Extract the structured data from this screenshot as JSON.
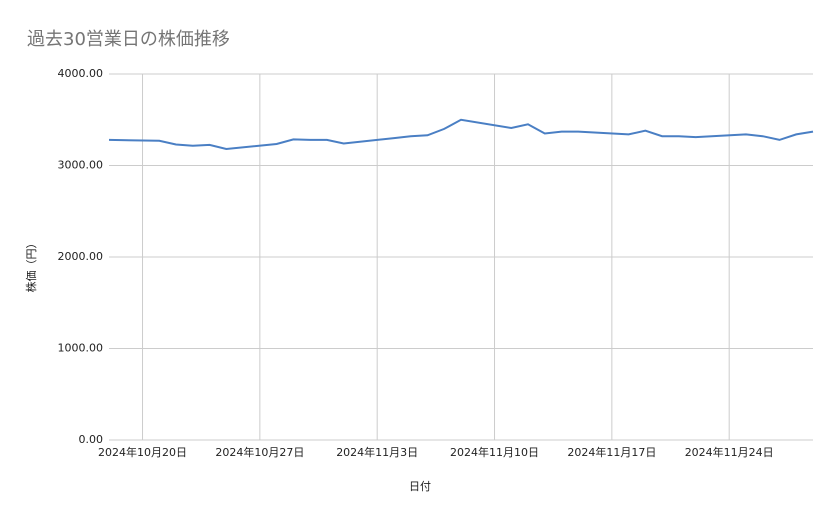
{
  "chart_data": {
    "type": "line",
    "title": "過去30営業日の株価推移",
    "x_label": "日付",
    "y_label": "株価（円）",
    "x": [
      "2024-10-18",
      "2024-10-21",
      "2024-10-22",
      "2024-10-23",
      "2024-10-24",
      "2024-10-25",
      "2024-10-28",
      "2024-10-29",
      "2024-10-30",
      "2024-10-31",
      "2024-11-01",
      "2024-11-04",
      "2024-11-05",
      "2024-11-06",
      "2024-11-07",
      "2024-11-08",
      "2024-11-11",
      "2024-11-12",
      "2024-11-13",
      "2024-11-14",
      "2024-11-15",
      "2024-11-18",
      "2024-11-19",
      "2024-11-20",
      "2024-11-21",
      "2024-11-22",
      "2024-11-25",
      "2024-11-26",
      "2024-11-27",
      "2024-11-28",
      "2024-11-29"
    ],
    "series": [
      {
        "name": "株価",
        "color": "#4a7fc4",
        "values": [
          3280,
          3270,
          3230,
          3215,
          3225,
          3180,
          3235,
          3285,
          3280,
          3280,
          3240,
          3300,
          3320,
          3330,
          3400,
          3500,
          3410,
          3450,
          3350,
          3370,
          3370,
          3340,
          3380,
          3320,
          3320,
          3310,
          3340,
          3320,
          3280,
          3340,
          3370
        ]
      }
    ],
    "xlim": [
      "2024-10-18",
      "2024-11-29"
    ],
    "xticks": [
      {
        "value": "2024-10-20",
        "label": "2024年10月20日"
      },
      {
        "value": "2024-10-27",
        "label": "2024年10月27日"
      },
      {
        "value": "2024-11-03",
        "label": "2024年11月3日"
      },
      {
        "value": "2024-11-10",
        "label": "2024年11月10日"
      },
      {
        "value": "2024-11-17",
        "label": "2024年11月17日"
      },
      {
        "value": "2024-11-24",
        "label": "2024年11月24日"
      }
    ],
    "ylim": [
      0,
      4000
    ],
    "yticks": [
      {
        "value": 0,
        "label": "0.00"
      },
      {
        "value": 1000,
        "label": "1000.00"
      },
      {
        "value": 2000,
        "label": "2000.00"
      },
      {
        "value": 3000,
        "label": "3000.00"
      },
      {
        "value": 4000,
        "label": "4000.00"
      }
    ],
    "grid": true
  }
}
